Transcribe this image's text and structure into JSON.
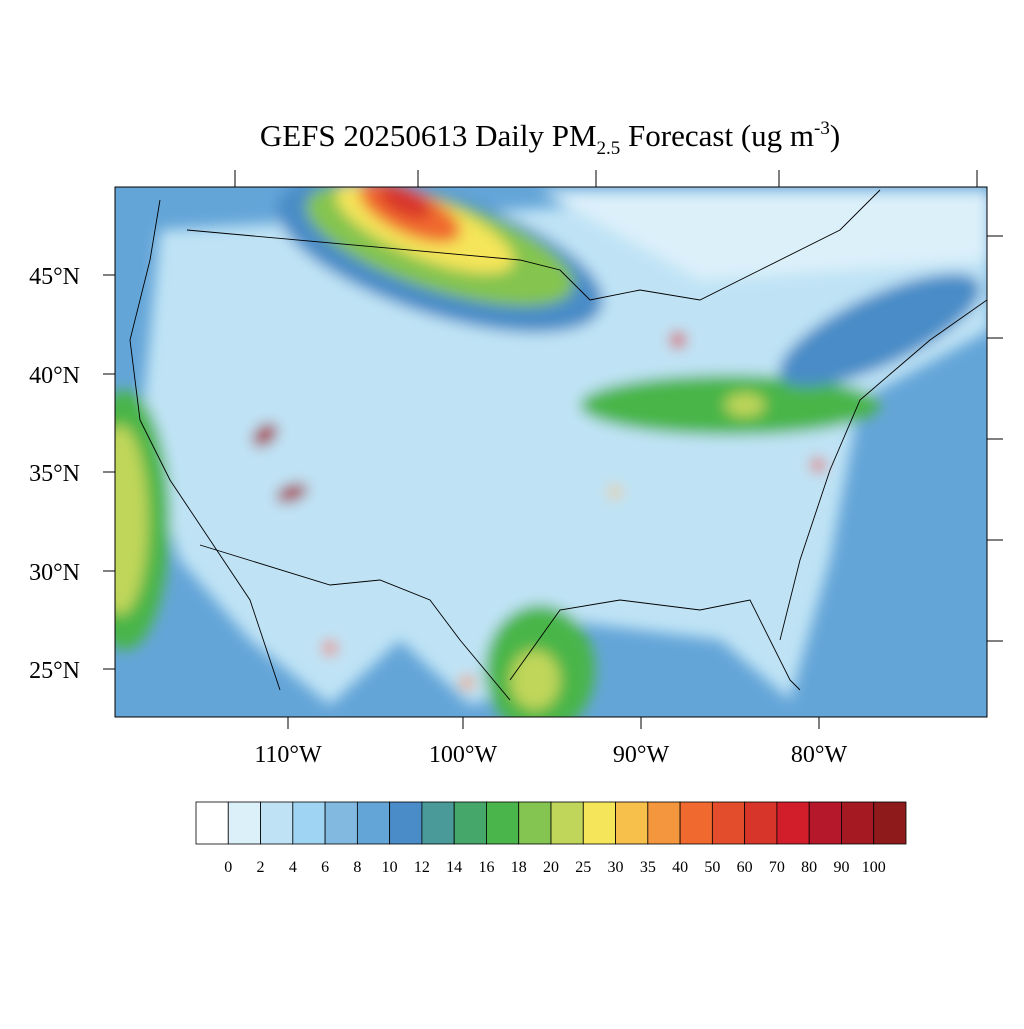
{
  "header": {
    "title_main": "GEFS 20250613 Daily PM",
    "title_sub": "2.5",
    "title_tail": " Forecast (ug m",
    "title_sup": "-3",
    "title_end": ")"
  },
  "map": {
    "lat_labels": [
      "45°N",
      "40°N",
      "35°N",
      "30°N",
      "25°N"
    ],
    "lon_labels": [
      "110°W",
      "100°W",
      "90°W",
      "80°W"
    ]
  },
  "colorbar": {
    "levels": [
      0,
      2,
      4,
      6,
      8,
      10,
      12,
      14,
      16,
      18,
      20,
      25,
      30,
      35,
      40,
      50,
      60,
      70,
      80,
      90,
      100
    ],
    "colors": [
      "#ffffff",
      "#dcf0fa",
      "#bfe3f5",
      "#9fd5f2",
      "#82b9e0",
      "#64a5d8",
      "#4a8cc7",
      "#4a9a9a",
      "#45a86a",
      "#4ab54a",
      "#84c450",
      "#c0d65a",
      "#f5e55a",
      "#f6c04a",
      "#f4963e",
      "#f0692e",
      "#e34d2c",
      "#d8352a",
      "#d21e2a",
      "#b5182a",
      "#a51a22",
      "#8e1a1c"
    ]
  }
}
